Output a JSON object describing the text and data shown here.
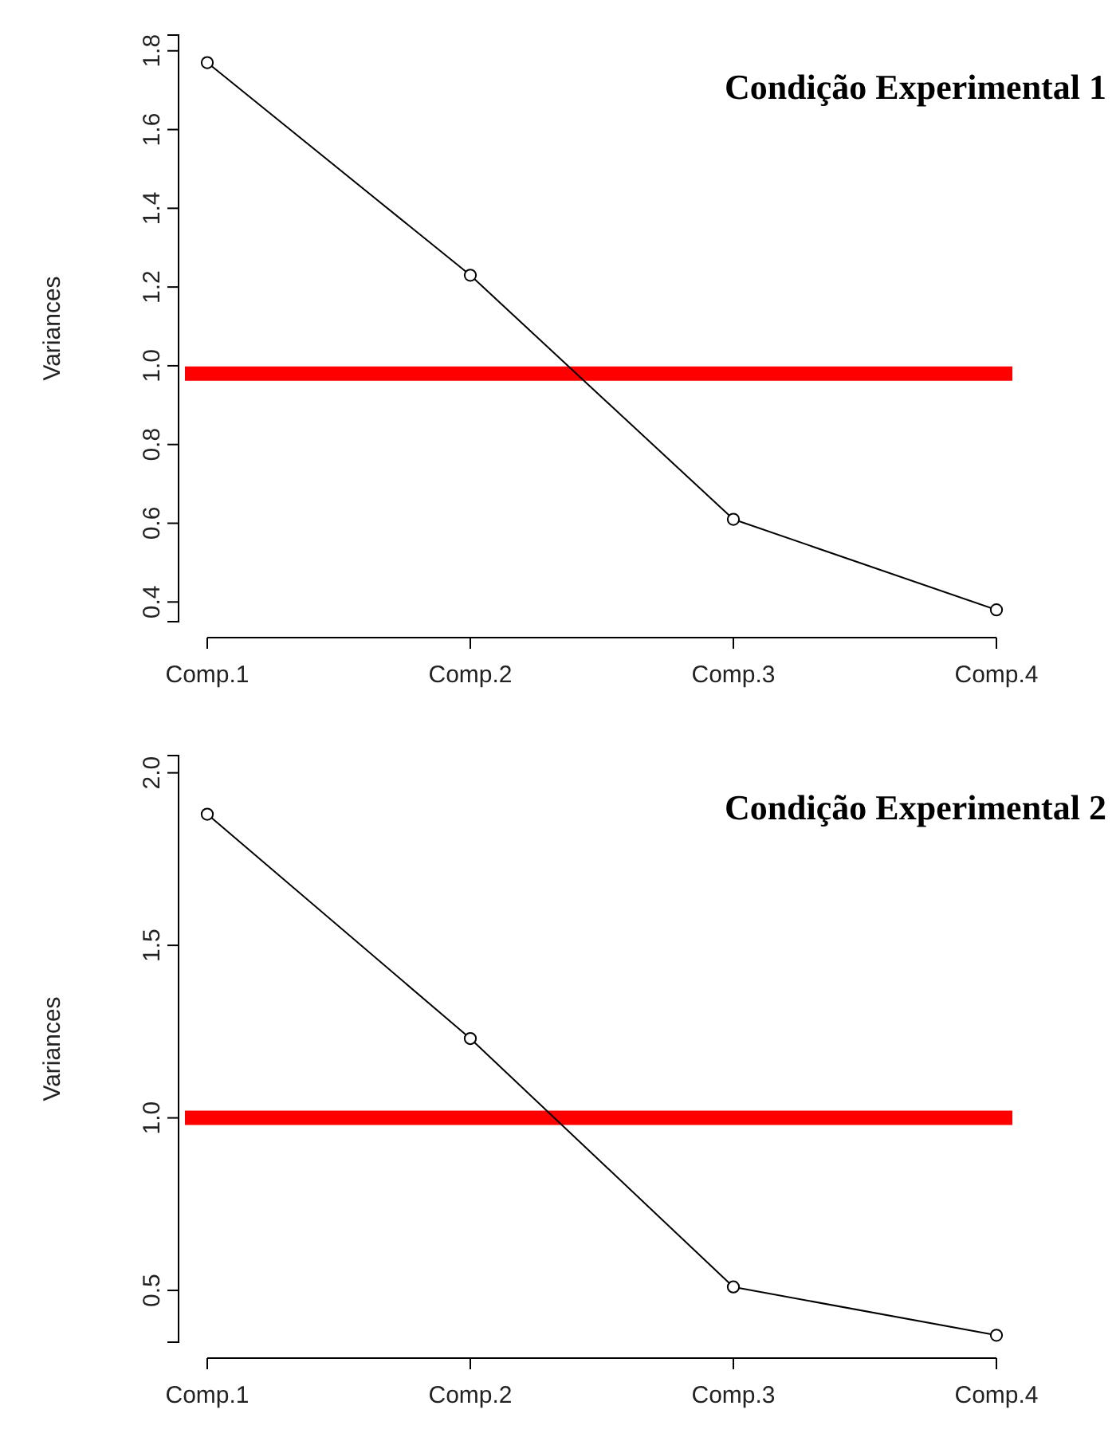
{
  "chart_data": [
    {
      "type": "line",
      "title": "Condição Experimental 1",
      "ylabel": "Variances",
      "categories": [
        "Comp.1",
        "Comp.2",
        "Comp.3",
        "Comp.4"
      ],
      "series": [
        {
          "color": "#000000",
          "values": [
            1.77,
            1.23,
            0.61,
            0.38
          ]
        }
      ],
      "ylim": [
        0.35,
        1.84
      ],
      "yticks": [
        {
          "value": 0.4,
          "label": "0.4"
        },
        {
          "value": 0.6,
          "label": "0.6"
        },
        {
          "value": 0.8,
          "label": "0.8"
        },
        {
          "value": 1.0,
          "label": "1.0"
        },
        {
          "value": 1.2,
          "label": "1.2"
        },
        {
          "value": 1.4,
          "label": "1.4"
        },
        {
          "value": 1.6,
          "label": "1.6"
        },
        {
          "value": 1.8,
          "label": "1.8"
        }
      ],
      "ref_lines": [
        {
          "axis": "y",
          "value": 0.98,
          "color": "#ff0000"
        }
      ],
      "marker": "circle",
      "line_style": "solid"
    },
    {
      "type": "line",
      "title": "Condição Experimental 2",
      "ylabel": "Variances",
      "categories": [
        "Comp.1",
        "Comp.2",
        "Comp.3",
        "Comp.4"
      ],
      "series": [
        {
          "color": "#000000",
          "values": [
            1.88,
            1.23,
            0.51,
            0.37
          ]
        }
      ],
      "ylim": [
        0.35,
        2.05
      ],
      "yticks": [
        {
          "value": 0.5,
          "label": "0.5"
        },
        {
          "value": 1.0,
          "label": "1.0"
        },
        {
          "value": 1.5,
          "label": "1.5"
        },
        {
          "value": 2.0,
          "label": "2.0"
        }
      ],
      "ref_lines": [
        {
          "axis": "y",
          "value": 1.0,
          "color": "#ff0000"
        }
      ],
      "marker": "circle",
      "line_style": "solid"
    }
  ]
}
